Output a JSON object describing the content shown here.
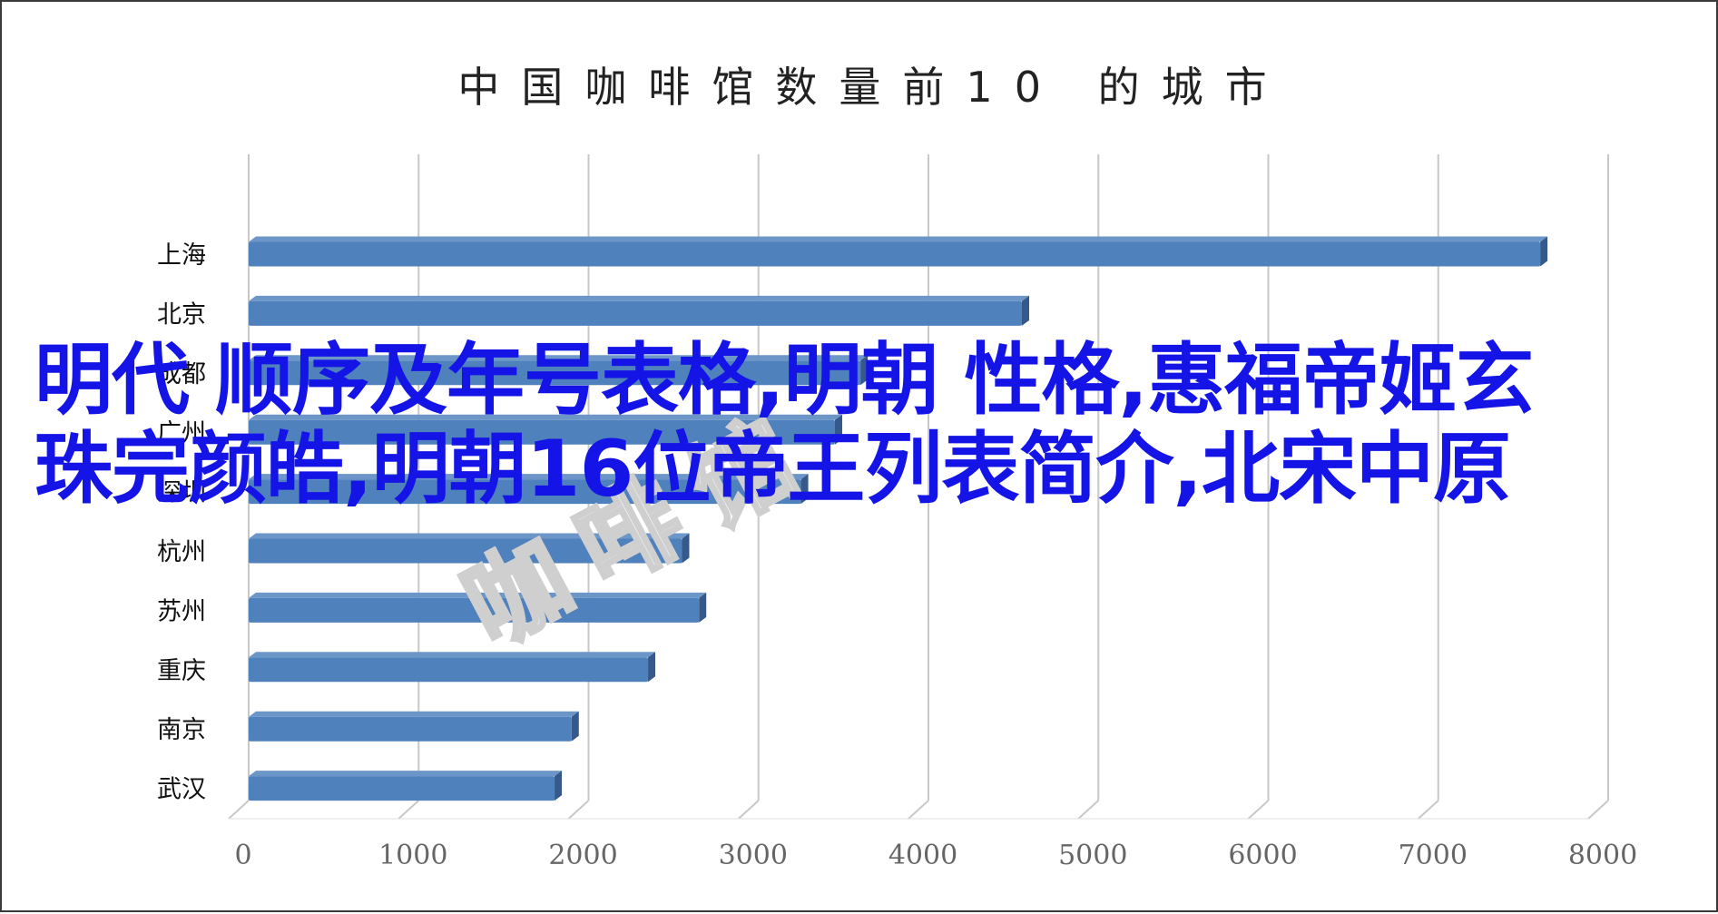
{
  "chart_data": {
    "type": "bar",
    "orientation": "horizontal",
    "title": "中国咖啡馆数量前10 的城市",
    "categories": [
      "上海",
      "北京",
      "成都",
      "广州",
      "深圳",
      "杭州",
      "苏州",
      "重庆",
      "南京",
      "武汉"
    ],
    "values": [
      7600,
      4550,
      3600,
      3450,
      3250,
      2550,
      2650,
      2350,
      1900,
      1800
    ],
    "xlim": [
      0,
      8000
    ],
    "xticks": [
      "0",
      "1000",
      "2000",
      "3000",
      "4000",
      "5000",
      "6000",
      "7000",
      "8000"
    ],
    "xlabel": "",
    "ylabel": "",
    "grid": "vertical",
    "legend": "none",
    "colors": {
      "bar": "#4f81bd",
      "bar_top": "#6d96c8",
      "bar_side": "#34598a",
      "grid": "#c8c8c8",
      "title": "#222222"
    }
  },
  "overlay": {
    "headline": "明代 顺序及年号表格,明朝 性格,惠福帝姬玄珠完颜皓,明朝16位帝王列表简介,北宋中原",
    "color": "#1414e6"
  },
  "watermark": {
    "text": "咖啡馆"
  }
}
